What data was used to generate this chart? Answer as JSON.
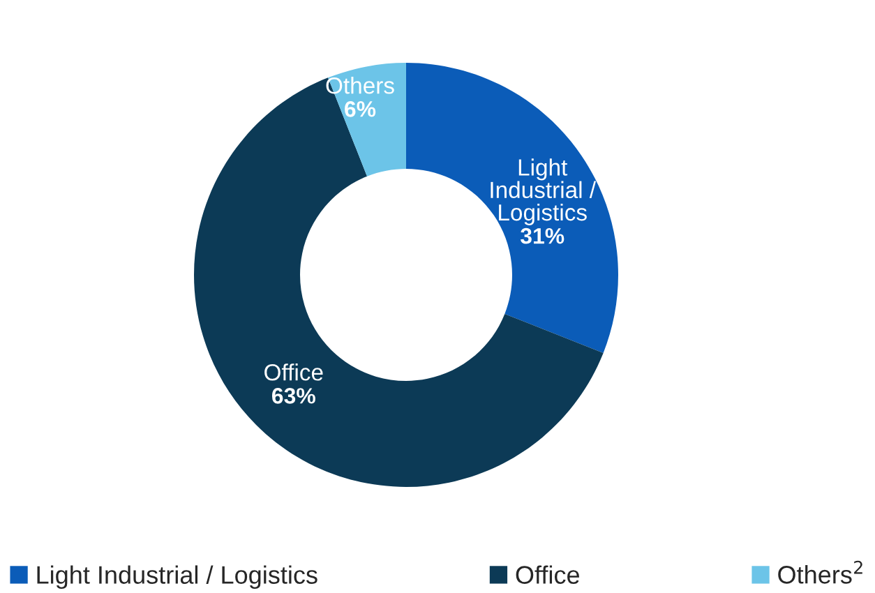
{
  "chart_data": {
    "type": "donut",
    "categories": [
      "Light Industrial / Logistics",
      "Office",
      "Others$^{2}$"
    ],
    "values": [
      31,
      63,
      6
    ],
    "colors": [
      "#0b5cb8",
      "#0c3a56",
      "#6cc4e8"
    ],
    "value_labels": [
      "31%",
      "63%",
      "6%"
    ],
    "annotations": [
      "Light\nIndustrial /\nLogistics",
      "Office",
      "Others"
    ],
    "legend": "bottom"
  }
}
